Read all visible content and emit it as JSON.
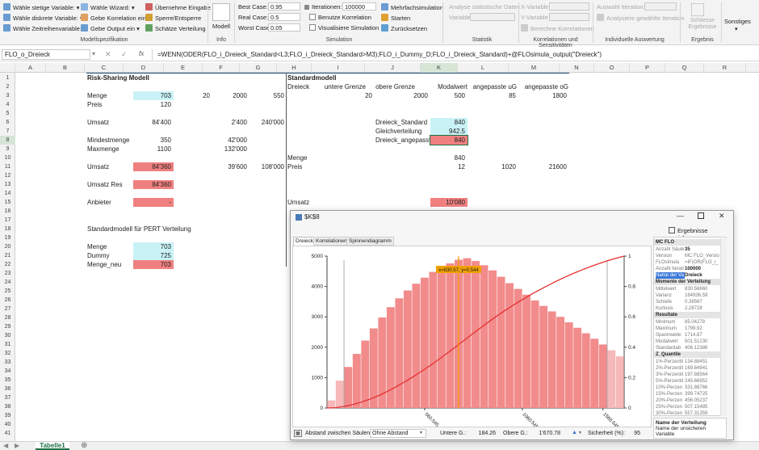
{
  "ribbon": {
    "col1": [
      "Wähle stetige Variable:",
      "Wähle diskrete Variable:",
      "Wähle Zeitreihenvariable:"
    ],
    "col2": [
      "Wähle Wizard:",
      "Gebe Korrelation ein",
      "Gebe Output ein"
    ],
    "col3": [
      "Übernehme Eingabe",
      "Sperre/Entsperre",
      "Schätze Verteilung"
    ],
    "group_modell": "Modellspezifikation",
    "modell_label": "Modell",
    "group_info": "Info",
    "best_label": "Best Case:",
    "best_value": "0.95",
    "real_label": "Real Case:",
    "real_value": "0.5",
    "worst_label": "Worst Case:",
    "worst_value": "0.05",
    "iter_label": "Iterationen:",
    "iter_value": "100000",
    "benutze": "Benutze Korrelation",
    "visual": "Visualisiere Simulation",
    "mehrfach": "Mehrfachsimulation",
    "starten": "Starten",
    "zurueck": "Zurücksetzen",
    "group_sim": "Simulation",
    "analyse": "Analyse statistische Daten",
    "variable": "Variable",
    "group_stat": "Statistik",
    "xvar": "X-Variable",
    "yvar": "Y-Variable",
    "berechne": "Berechne Korrelationen",
    "group_korr": "Korrelationen und Sensitivitäten",
    "auswahl": "Auswahl Iteration:",
    "analysiere": "Analysiere gewählte Iteration",
    "group_ind": "Individuelle Auswertung",
    "schliesse": "Schliesse Ergebnisse",
    "group_erg": "Ergebnis",
    "sonstiges": "Sonstiges"
  },
  "formula": {
    "namebox": "FLO_o_Dreieck",
    "fx": "fx",
    "text": "=WENN(ODER(FLO_i_Dreieck_Standard<L3;FLO_i_Dreieck_Standard>M3);FLO_i_Dummy_D;FLO_i_Dreieck_Standard)+@FLOsimula_output(\"Dreieck\")"
  },
  "columns": [
    "A",
    "B",
    "C",
    "D",
    "E",
    "F",
    "G",
    "H",
    "I",
    "J",
    "K",
    "L",
    "M",
    "N",
    "O",
    "P",
    "Q",
    "R"
  ],
  "rows": [
    "1",
    "2",
    "3",
    "4",
    "5",
    "6",
    "7",
    "8",
    "9",
    "10",
    "11",
    "12",
    "13",
    "14",
    "15",
    "16",
    "17",
    "18",
    "19",
    "20",
    "21",
    "22",
    "23",
    "24",
    "25",
    "26",
    "27",
    "28",
    "29",
    "30",
    "31",
    "32",
    "33",
    "34",
    "35",
    "36",
    "37",
    "38",
    "39",
    "40",
    "41"
  ],
  "sheet": {
    "risk_title": "Risk-Sharing Modell",
    "std_title": "Standardmodell",
    "r2": [
      "Dreieck",
      "untere Grenze",
      "obere Grenze",
      "Modalwert",
      "angepasste uG",
      "angepasste oG"
    ],
    "menge": "Menge",
    "menge_d": "703",
    "menge_e": "20",
    "menge_f": "2000",
    "menge_g": "550",
    "r3_i": "20",
    "r3_j": "2000",
    "r3_k": "500",
    "r3_l": "85",
    "r3_m": "1800",
    "preis": "Preis",
    "preis_d": "120",
    "umsatz": "Umsatz",
    "umsatz_d": "84'400",
    "umsatz_f": "2'400",
    "umsatz_g": "240'000",
    "dreieck_std": "Dreieck_Standard",
    "dreieck_std_v": "840",
    "gleich": "Gleichverteilung",
    "gleich_v": "942.5",
    "dreieck_ang": "Dreieck_angepasst",
    "dreieck_ang_v": "840",
    "mindest": "Mindestmenge",
    "mindest_d": "350",
    "mindest_f": "42'000",
    "max": "Maxmenge",
    "max_d": "1100",
    "max_f": "132'000",
    "menge_h": "Menge",
    "menge_k": "840",
    "preis_h": "Preis",
    "preis_k": "12",
    "preis_l": "1020",
    "preis_m": "21600",
    "umsatz11": "Umsatz",
    "umsatz11_d": "84'360",
    "umsatz11_f": "39'600",
    "umsatz11_g": "108'000",
    "umsatz_res": "Umsatz Res",
    "umsatz_res_d": "84'360",
    "anbieter": "Anbieter",
    "anbieter_d": "-",
    "umsatz15": "Umsatz",
    "umsatz15_k": "10'080",
    "pert": "Standardmodell für PERT Verteilung",
    "menge20": "Menge",
    "menge20_d": "703",
    "dummy": "Dummy",
    "dummy_d": "725",
    "menge_neu": "Menge_neu",
    "menge_neu_d": "703"
  },
  "tab": "Tabelle1",
  "window": {
    "title": "$K$8",
    "save": "Ergebnisse speichern",
    "tabs": [
      "Dreieck",
      "Korrelationen",
      "Spinnendiagramm"
    ],
    "cursor": "x=830.57, y=0.544",
    "yticks": [
      "5000",
      "4000",
      "3000",
      "2000",
      "1000",
      "0"
    ],
    "y2ticks": [
      "1",
      "0.8",
      "0.6",
      "0.4",
      "0.2",
      "0"
    ],
    "xticks": [
      "560.545",
      "1060.545",
      "1560.545"
    ],
    "bottom": {
      "abstand": "Abstand zwischen Säulen:",
      "ohne": "Ohne Abstand",
      "untere": "Untere G.:",
      "untere_v": "184.26",
      "obere": "Obere G.:",
      "obere_v": "1'670.78",
      "sicherheit": "Sicherheit (%):",
      "sicherheit_v": "95"
    },
    "panel": {
      "h1": "MC FLO",
      "rows1": [
        [
          "Anzahl Säule",
          "35"
        ],
        [
          "Version",
          "MC FLO_Versio"
        ],
        [
          "FLOsimula",
          "=IF(OR(FLO_i_"
        ],
        [
          "Anzahl Iterati",
          "100000"
        ],
        [
          "Name der Va",
          "Dreieck"
        ]
      ],
      "h2": "Momente der Verteilung",
      "rows2": [
        [
          "Mittelwert",
          "830.56660"
        ],
        [
          "Varianz",
          "164936.59"
        ],
        [
          "Schiefe",
          "0.38567"
        ],
        [
          "Kurtosis",
          "2.28728"
        ]
      ],
      "h3": "Resultate",
      "rows3": [
        [
          "Minimum",
          "85.04278"
        ],
        [
          "Maximum",
          "1799.92"
        ],
        [
          "Spannweite",
          "1714.87"
        ],
        [
          "Modalwert",
          "501.51230"
        ],
        [
          "Standardab",
          "406.12386"
        ]
      ],
      "h4": "Z_Quantile",
      "rows4": [
        [
          "1%-Perzentil",
          "134.88451"
        ],
        [
          "2%-Perzentil",
          "169.84941"
        ],
        [
          "3%-Perzentil",
          "197.88564"
        ],
        [
          "5%-Perzentil",
          "245.66952"
        ],
        [
          "10%-Perzen",
          "331.88766"
        ],
        [
          "15%-Perzen",
          "399.74725"
        ],
        [
          "20%-Perzen",
          "456.05237"
        ],
        [
          "25%-Perzen",
          "507.15485"
        ],
        [
          "30%-Perzen",
          "557.31359"
        ]
      ],
      "footer_title": "Name der Verteilung",
      "footer_text": "Name der unsicheren Variable"
    }
  },
  "chart_data": {
    "type": "bar",
    "title": "",
    "ylim": [
      0,
      5000
    ],
    "y2lim": [
      0,
      1
    ],
    "values": [
      250,
      900,
      1350,
      1780,
      2220,
      2620,
      2980,
      3320,
      3610,
      3870,
      4090,
      4290,
      4480,
      4640,
      4760,
      4880,
      4930,
      4840,
      4700,
      4530,
      4320,
      4110,
      3920,
      3730,
      3540,
      3360,
      3180,
      3000,
      2820,
      2640,
      2460,
      2280,
      2090,
      1900,
      1700
    ]
  },
  "colors": {
    "bar": "#f28b8b",
    "bar_light": "#f6b8b8",
    "cdf": "#e53030",
    "cursor": "#f0a000",
    "cyan": "#c9f2f6",
    "red": "#f08080"
  }
}
